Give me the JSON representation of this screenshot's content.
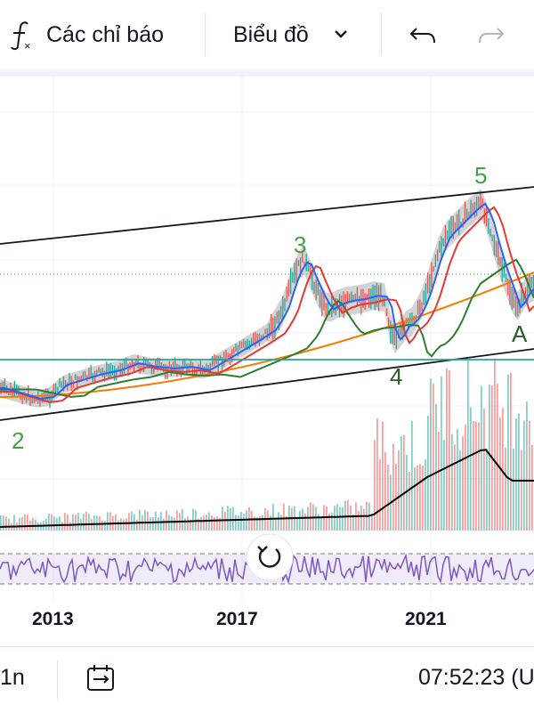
{
  "toolbar": {
    "indicators_label": "Các chỉ báo",
    "chart_label": "Biểu đồ",
    "fx_icon": "function-fx-icon",
    "chart_dropdown_icon": "chevron-down-icon",
    "undo_icon": "undo-arrow-icon",
    "redo_icon": "redo-arrow-icon"
  },
  "chart": {
    "time_axis": [
      "2013",
      "2017",
      "2021"
    ],
    "wave_labels": [
      "2",
      "3",
      "4",
      "5",
      "A"
    ],
    "reset_icon": "reset-rotate-icon",
    "colors": {
      "wave_green": "#43a047",
      "wave_dark": "#2e5a2e",
      "channel_line": "#131722",
      "support_line": "#26a69a",
      "ma_blue": "#2962ff",
      "ma_red": "#e53935",
      "ma_green": "#2e7d32",
      "ma_orange": "#f57c00",
      "rsi_purple": "#7e57c2",
      "volume_up": "#26a69a",
      "volume_down": "#ef5350"
    }
  },
  "bottombar": {
    "interval": "1n",
    "date_range_icon": "date-range-icon",
    "clock": "07:52:23 (U"
  }
}
